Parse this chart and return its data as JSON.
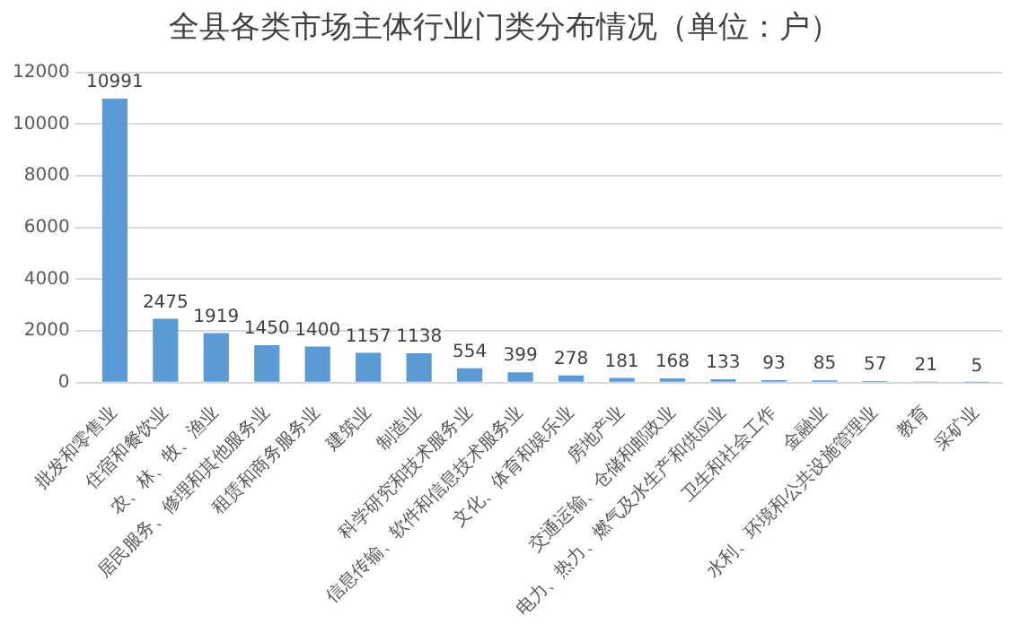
{
  "chart_data": {
    "type": "bar",
    "title": "全县各类市场主体行业门类分布情况（单位：户）",
    "categories": [
      "批发和零售业",
      "住宿和餐饮业",
      "农、林、牧、渔业",
      "居民服务、修理和其他服务业",
      "租赁和商务服务业",
      "建筑业",
      "制造业",
      "科学研究和技术服务业",
      "信息传输、软件和信息技术服务业",
      "文化、体育和娱乐业",
      "房地产业",
      "交通运输、仓储和邮政业",
      "电力、热力、燃气及水生产和供应业",
      "卫生和社会工作",
      "金融业",
      "水利、环境和公共设施管理业",
      "教育",
      "采矿业"
    ],
    "values": [
      10991,
      2475,
      1919,
      1450,
      1400,
      1157,
      1138,
      554,
      399,
      278,
      181,
      168,
      133,
      93,
      85,
      57,
      21,
      5
    ],
    "color": "#5b9bd5",
    "ylim": [
      0,
      12000
    ],
    "yticks": [
      0,
      2000,
      4000,
      6000,
      8000,
      10000,
      12000
    ],
    "grid": "y",
    "data_labels": true,
    "legend": false
  }
}
